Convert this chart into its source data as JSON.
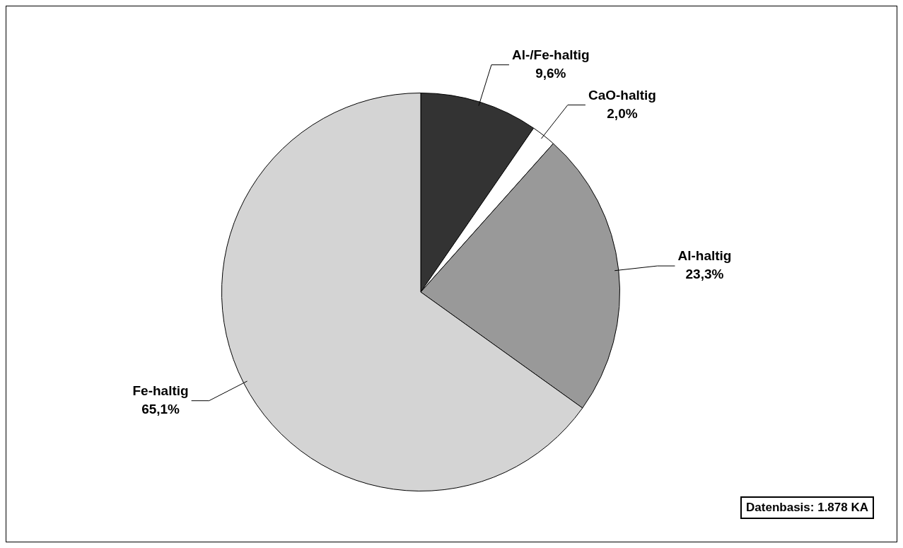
{
  "chart_data": {
    "type": "pie",
    "categories": [
      "Al-/Fe-haltig",
      "CaO-haltig",
      "Al-haltig",
      "Fe-haltig"
    ],
    "values": [
      9.6,
      2.0,
      23.3,
      65.1
    ],
    "colors": [
      "#333333",
      "#ffffff",
      "#999999",
      "#d4d4d4"
    ],
    "value_labels": [
      "9,6%",
      "2,0%",
      "23,3%",
      "65,1%"
    ],
    "legend": false,
    "annotations": [
      "Datenbasis: 1.878 KA"
    ]
  }
}
